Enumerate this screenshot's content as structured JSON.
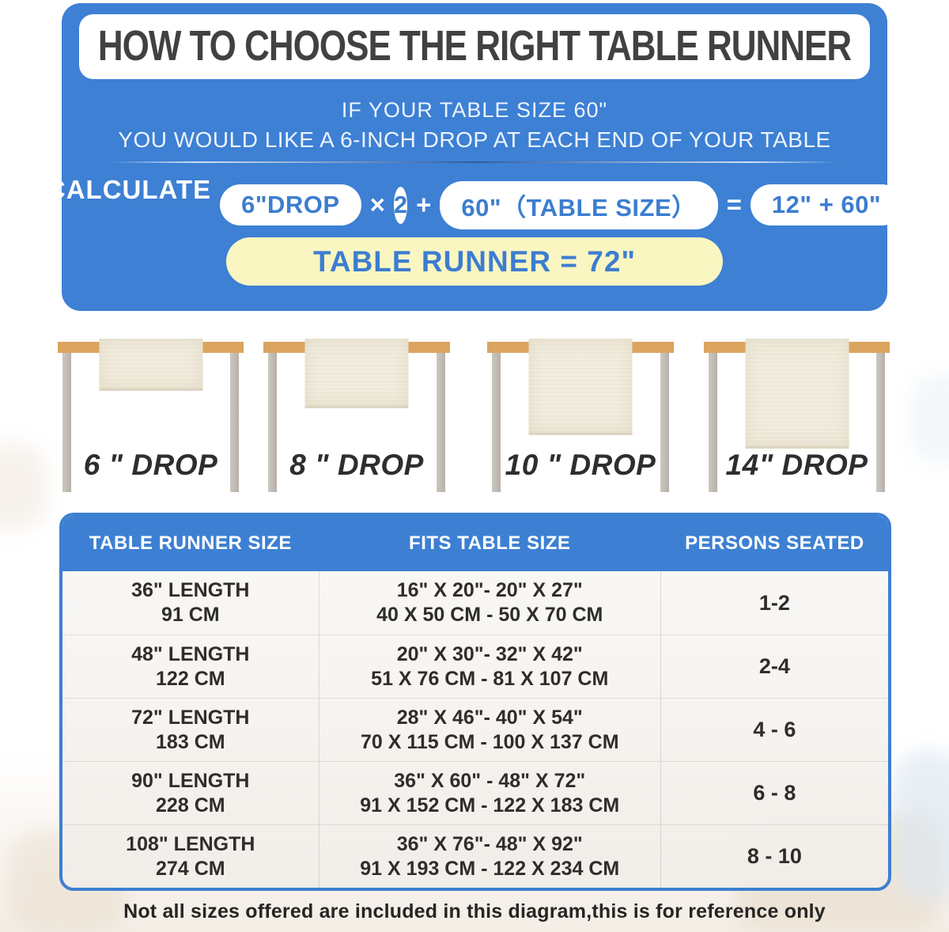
{
  "colors": {
    "panel_blue": "#3d80d4",
    "text_blue": "#3c7dd0",
    "highlight_yellow": "#faf6c2",
    "tabletop_tan": "#dba45f",
    "runner_cream": "#f1ecdd",
    "title_dark": "#414141"
  },
  "header": {
    "title": "HOW TO CHOOSE THE RIGHT TABLE RUNNER",
    "subtitle_line1": "IF YOUR TABLE SIZE 60\"",
    "subtitle_line2": "YOU WOULD LIKE A 6-INCH DROP AT EACH END OF YOUR TABLE"
  },
  "calculation": {
    "label": "CALCULATE :",
    "drop_pill": "6\"DROP",
    "times_sign": "×",
    "multiplier": "2",
    "plus_sign": "+",
    "table_size_pill": "60\"（TABLE SIZE）",
    "equals_sign": "=",
    "result_pill": "12\" + 60\"",
    "total": "TABLE RUNNER = 72\""
  },
  "figures": [
    {
      "drop_inches": 6,
      "label": "6 \" DROP"
    },
    {
      "drop_inches": 8,
      "label": "8 \" DROP"
    },
    {
      "drop_inches": 10,
      "label": "10 \" DROP"
    },
    {
      "drop_inches": 14,
      "label": "14\" DROP"
    }
  ],
  "size_chart": {
    "columns": [
      "TABLE RUNNER SIZE",
      "FITS TABLE SIZE",
      "PERSONS SEATED"
    ],
    "rows": [
      {
        "runner_in": "36\" LENGTH",
        "runner_cm": "91 CM",
        "fits_in": "16\" X 20\"- 20\" X 27\"",
        "fits_cm": "40 X 50 CM - 50 X 70 CM",
        "persons": "1-2"
      },
      {
        "runner_in": "48\" LENGTH",
        "runner_cm": "122 CM",
        "fits_in": "20\" X 30\"- 32\" X 42\"",
        "fits_cm": "51 X 76 CM - 81 X 107 CM",
        "persons": "2-4"
      },
      {
        "runner_in": "72\" LENGTH",
        "runner_cm": "183 CM",
        "fits_in": "28\" X 46\"- 40\" X 54\"",
        "fits_cm": "70 X 115 CM - 100 X 137 CM",
        "persons": "4 - 6"
      },
      {
        "runner_in": "90\" LENGTH",
        "runner_cm": "228 CM",
        "fits_in": "36\" X 60\" - 48\" X 72\"",
        "fits_cm": "91 X 152 CM - 122 X 183 CM",
        "persons": "6 - 8"
      },
      {
        "runner_in": "108\" LENGTH",
        "runner_cm": "274 CM",
        "fits_in": "36\" X 76\"- 48\" X 92\"",
        "fits_cm": "91 X 193 CM - 122 X 234 CM",
        "persons": "8 - 10"
      }
    ]
  },
  "footer": {
    "note": "Not all sizes offered are included in this diagram,this is for reference only"
  }
}
